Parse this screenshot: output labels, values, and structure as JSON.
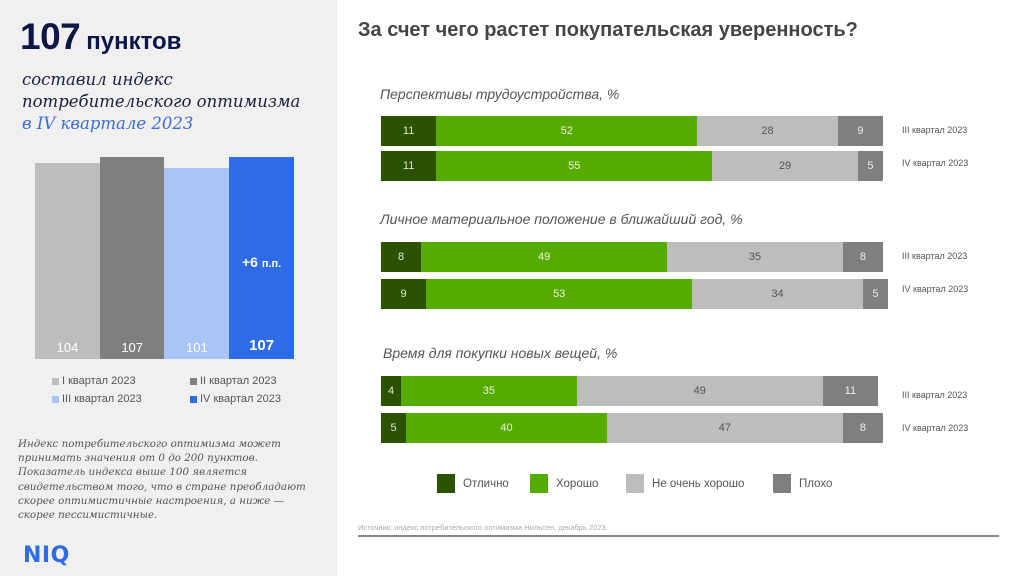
{
  "left": {
    "headline_value": "107",
    "headline_unit": "пунктов",
    "subtitle_line1": "составил индекс",
    "subtitle_line2": "потребительского оптимизма",
    "subtitle_line3": "в IV квартале 2023",
    "note": "Индекс потребительского оптимизма может принимать значения от 0 до 200 пунктов. Показатель индекса выше 100 является свидетельством того, что в стране преобладают скорее оптимистичные настроения, а ниже — скорее пессимистичные.",
    "logo": "NIQ"
  },
  "main_title": "За счет чего растет покупательская уверенность?",
  "source": "Источник: индекс потребительского оптимизма Нильсен, декабрь 2023.",
  "chart_data": [
    {
      "type": "bar",
      "title": "Индекс потребительского оптимизма",
      "categories": [
        "I квартал 2023",
        "II квартал 2023",
        "III квартал 2023",
        "IV квартал 2023"
      ],
      "values": [
        104,
        107,
        101,
        107
      ],
      "labels": [
        "104",
        "107",
        "101",
        "107"
      ],
      "colors": [
        "#bdbdbd",
        "#7f7f7f",
        "#a9c4f7",
        "#2e6be6"
      ],
      "annotation": {
        "category": "IV квартал 2023",
        "text": "+6",
        "unit": "п.п."
      },
      "legend": [
        "I квартал 2023",
        "II квартал 2023",
        "III квартал 2023",
        "IV квартал 2023"
      ],
      "legend_position": "bottom",
      "ylim": [
        0,
        110
      ]
    },
    {
      "type": "bar",
      "stacked": true,
      "orientation": "horizontal",
      "xlim": [
        0,
        100
      ],
      "legend": [
        {
          "name": "Отлично",
          "color": "#2b5200"
        },
        {
          "name": "Хорошо",
          "color": "#56ab00"
        },
        {
          "name": "Не очень хорошо",
          "color": "#bdbdbd"
        },
        {
          "name": "Плохо",
          "color": "#7f7f7f"
        }
      ],
      "legend_position": "bottom",
      "sections": [
        {
          "title": "Перспективы трудоустройства, %",
          "rows": [
            {
              "label": "III квартал 2023",
              "values": [
                11,
                52,
                28,
                9
              ]
            },
            {
              "label": "IV квартал 2023",
              "values": [
                11,
                55,
                29,
                5
              ]
            }
          ]
        },
        {
          "title": "Личное материальное положение в ближайший год, %",
          "rows": [
            {
              "label": "III квартал 2023",
              "values": [
                8,
                49,
                35,
                8
              ]
            },
            {
              "label": "IV квартал 2023",
              "values": [
                9,
                53,
                34,
                5
              ]
            }
          ]
        },
        {
          "title": "Время для покупки новых вещей, %",
          "rows": [
            {
              "label": "III квартал 2023",
              "values": [
                4,
                35,
                49,
                11
              ]
            },
            {
              "label": "IV квартал 2023",
              "values": [
                5,
                40,
                47,
                8
              ]
            }
          ]
        }
      ]
    }
  ]
}
